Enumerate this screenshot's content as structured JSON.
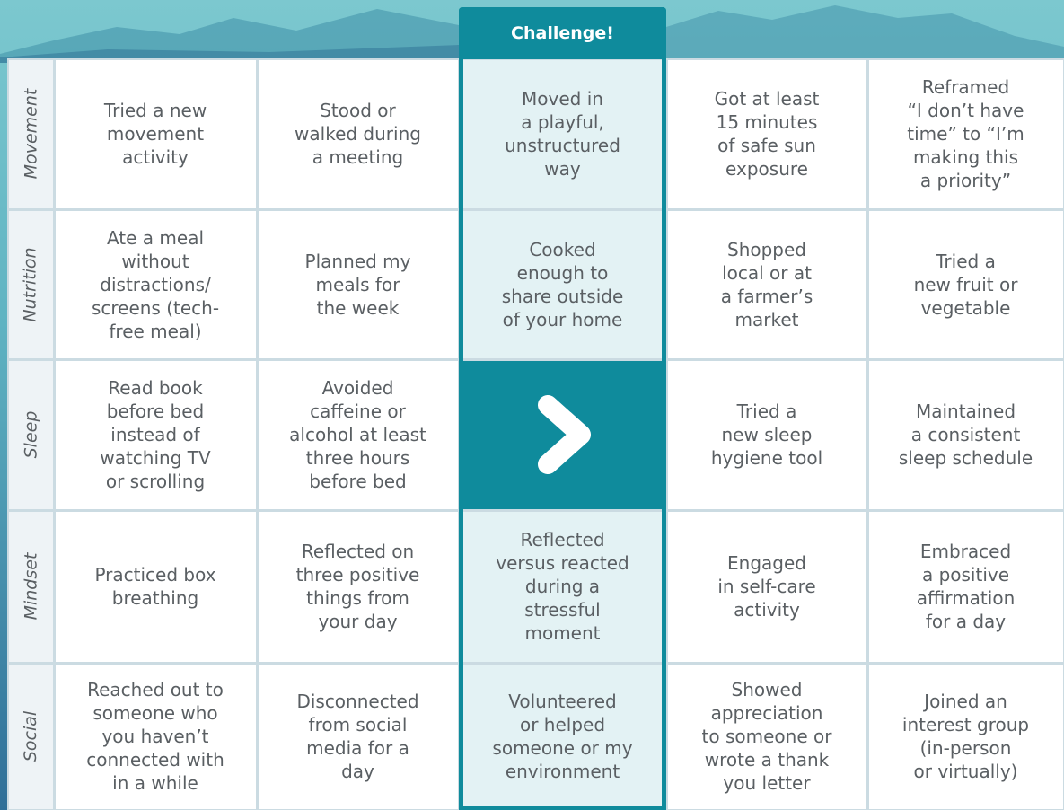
{
  "header": {
    "challenge": "Challenge!"
  },
  "rows": [
    {
      "label": "Movement",
      "cells": [
        [
          "Tried a new",
          "movement",
          "activity"
        ],
        [
          "Stood or",
          "walked during",
          "a meeting"
        ],
        [
          "Moved in",
          "a playful,",
          "unstructured",
          "way"
        ],
        [
          "Got at least",
          "15 minutes",
          "of safe sun",
          "exposure"
        ],
        [
          "Reframed",
          "“I don’t have",
          "time” to “I’m",
          "making this",
          "a priority”"
        ]
      ]
    },
    {
      "label": "Nutrition",
      "cells": [
        [
          "Ate a meal",
          "without",
          "distractions/",
          "screens (tech-",
          "free meal)"
        ],
        [
          "Planned my",
          "meals for",
          "the week"
        ],
        [
          "Cooked",
          "enough to",
          "share outside",
          "of your home"
        ],
        [
          "Shopped",
          "local or at",
          "a farmer’s",
          "market"
        ],
        [
          "Tried a",
          "new fruit or",
          "vegetable"
        ]
      ]
    },
    {
      "label": "Sleep",
      "cells": [
        [
          "Read book",
          "before bed",
          "instead of",
          "watching TV",
          "or scrolling"
        ],
        [
          "Avoided",
          "caffeine or",
          "alcohol at least",
          "three hours",
          "before bed"
        ],
        [
          "Tried a",
          "new sleep",
          "hygiene tool"
        ],
        [
          "Maintained",
          "a consistent",
          "sleep schedule"
        ]
      ]
    },
    {
      "label": "Mindset",
      "cells": [
        [
          "Practiced box",
          "breathing"
        ],
        [
          "Reflected on",
          "three positive",
          "things from",
          "your day"
        ],
        [
          "Reflected",
          "versus reacted",
          "during a",
          "stressful",
          "moment"
        ],
        [
          "Engaged",
          "in self-care",
          "activity"
        ],
        [
          "Embraced",
          "a positive",
          "affirmation",
          "for a day"
        ]
      ]
    },
    {
      "label": "Social",
      "cells": [
        [
          "Reached out to",
          "someone who",
          "you haven’t",
          "connected with",
          "in a while"
        ],
        [
          "Disconnected",
          "from social",
          "media for a",
          "day"
        ],
        [
          "Volunteered",
          "or helped",
          "someone or my",
          "environment"
        ],
        [
          "Showed",
          "appreciation",
          "to someone or",
          "wrote a thank",
          "you letter"
        ],
        [
          "Joined an",
          "interest group",
          "(in-person",
          "or virtually)"
        ]
      ]
    }
  ]
}
